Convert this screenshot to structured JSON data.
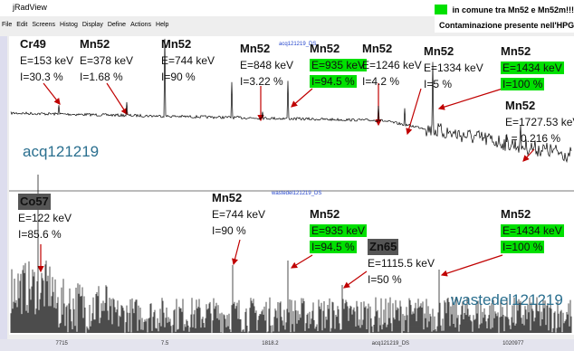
{
  "window": {
    "title": "jRadView",
    "menu": [
      "File",
      "Edit",
      "Screens",
      "Histog",
      "Display",
      "Define",
      "Actions",
      "Help"
    ]
  },
  "legend": [
    {
      "text": "in comune tra Mn52 e Mn52m!!!",
      "color": "#00e000"
    },
    {
      "text": "Contaminazione presente nell'HPGe del Negrar",
      "color": "#555555"
    }
  ],
  "panels": [
    {
      "label": "acq121219",
      "ds_label": "acq121219_DS",
      "annotations": [
        {
          "name": "Cr49",
          "energy": "E=153 keV",
          "intensity": "I=30.3 %"
        },
        {
          "name": "Mn52",
          "energy": "E=378 keV",
          "intensity": "I=1.68 %"
        },
        {
          "name": "Mn52",
          "energy": "E=744 keV",
          "intensity": "I=90 %"
        },
        {
          "name": "Mn52",
          "energy": "E=848 keV",
          "intensity": "I=3.22 %"
        },
        {
          "name": "Mn52",
          "energy": "E=935 keV",
          "intensity": "I=94.5 %",
          "fill": "#00e000"
        },
        {
          "name": "Mn52",
          "energy": "E=1246 keV",
          "intensity": "I=4.2 %"
        },
        {
          "name": "Mn52",
          "energy": "E=1334 keV",
          "intensity": "I=5 %"
        },
        {
          "name": "Mn52",
          "energy": "E=1434 keV",
          "intensity": "I=100 %",
          "fill": "#00e000"
        },
        {
          "name": "Mn52",
          "energy": "E=1727.53 keV",
          "intensity": "I = 0.216 %"
        }
      ]
    },
    {
      "label": "wastedel121219",
      "ds_label": "wastedel121219_DS",
      "annotations": [
        {
          "name": "Co57",
          "energy": "E=122 keV",
          "intensity": "I=85.6 %",
          "name_fill": "#555555"
        },
        {
          "name": "Mn52",
          "energy": "E=744 keV",
          "intensity": "I=90 %"
        },
        {
          "name": "Mn52",
          "energy": "E=935 keV",
          "intensity": "I=94.5 %",
          "fill": "#00e000"
        },
        {
          "name": "Zn65",
          "energy": "E=1115.5 keV",
          "intensity": "I=50 %",
          "name_fill": "#555555"
        },
        {
          "name": "Mn52",
          "energy": "E=1434 keV",
          "intensity": "I=100 %",
          "fill": "#00e000"
        }
      ]
    }
  ],
  "status": [
    "7715",
    "7.5",
    "1818.2",
    "acq121219_DS",
    "1020977"
  ]
}
